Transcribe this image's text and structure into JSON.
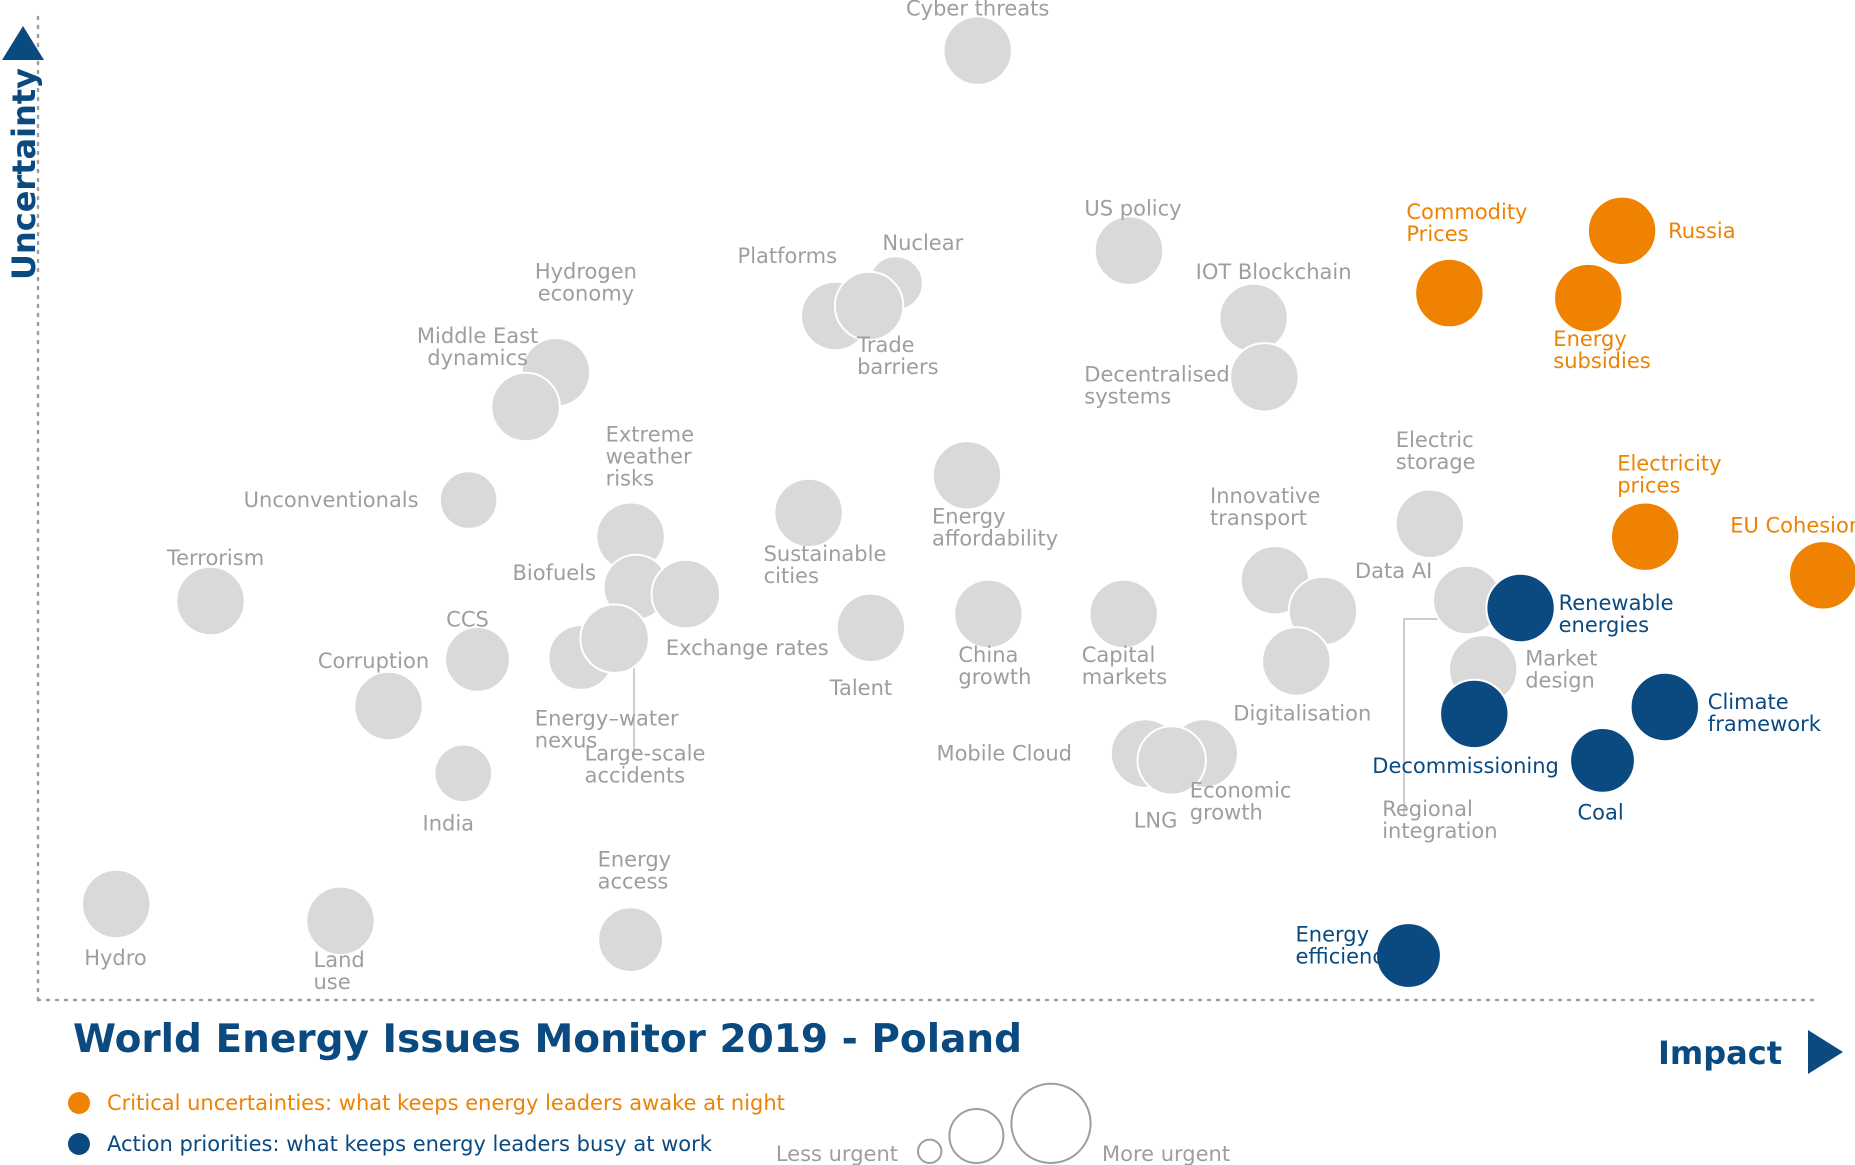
{
  "chart_data": {
    "type": "bubble",
    "title": "World Energy Issues Monitor 2019 - Poland",
    "xlabel": "Impact",
    "ylabel": "Uncertainty",
    "xlim": [
      0,
      100
    ],
    "ylim": [
      0,
      100
    ],
    "colors": {
      "grey": "#d9d9d9",
      "orange": "#ef8200",
      "blue": "#0a4a80",
      "axis": "#0a4a80",
      "dots": "#9e9e9e"
    },
    "legend": [
      {
        "color": "orange",
        "label": "Critical uncertainties: what keeps energy leaders awake at night"
      },
      {
        "color": "blue",
        "label": "Action priorities: what keeps energy leaders busy at work"
      }
    ],
    "size_legend": {
      "less_label": "Less urgent",
      "more_label": "More urgent",
      "sizes": [
        1.3,
        3.0,
        4.4
      ]
    },
    "issues": [
      {
        "name": "Cyber threats",
        "label": [
          "Cyber threats"
        ],
        "x": 52.4,
        "y": 95.9,
        "size": 3.8,
        "category": "grey"
      },
      {
        "name": "US policy",
        "label": [
          "US policy"
        ],
        "x": 60.9,
        "y": 75.7,
        "size": 3.8,
        "category": "grey"
      },
      {
        "name": "Nuclear",
        "label": [
          "Nuclear"
        ],
        "x": 47.8,
        "y": 72.4,
        "size": 3.0,
        "category": "grey"
      },
      {
        "name": "Platforms",
        "label": [
          "Platforms"
        ],
        "x": 44.4,
        "y": 69.1,
        "size": 3.8,
        "category": "grey"
      },
      {
        "name": "Trade barriers",
        "label": [
          "Trade",
          "barriers"
        ],
        "x": 46.3,
        "y": 70.1,
        "size": 3.8,
        "category": "grey"
      },
      {
        "name": "IOT Blockchain",
        "label": [
          "IOT Blockchain"
        ],
        "x": 67.9,
        "y": 68.9,
        "size": 3.8,
        "category": "grey"
      },
      {
        "name": "Decentralised systems",
        "label": [
          "Decentralised",
          "systems"
        ],
        "x": 68.5,
        "y": 62.9,
        "size": 3.8,
        "category": "grey"
      },
      {
        "name": "Hydrogen economy",
        "label": [
          "Hydrogen",
          "economy"
        ],
        "x": 28.7,
        "y": 63.4,
        "size": 3.8,
        "category": "grey"
      },
      {
        "name": "Middle East dynamics",
        "label": [
          "Middle East",
          "dynamics"
        ],
        "x": 27.0,
        "y": 59.9,
        "size": 3.8,
        "category": "grey"
      },
      {
        "name": "Unconventionals",
        "label": [
          "Unconventionals"
        ],
        "x": 23.8,
        "y": 50.5,
        "size": 3.2,
        "category": "grey"
      },
      {
        "name": "Terrorism",
        "label": [
          "Terrorism"
        ],
        "x": 9.3,
        "y": 40.3,
        "size": 3.8,
        "category": "grey"
      },
      {
        "name": "CCS",
        "label": [
          "CCS"
        ],
        "x": 24.3,
        "y": 34.4,
        "size": 3.6,
        "category": "grey"
      },
      {
        "name": "Corruption",
        "label": [
          "Corruption"
        ],
        "x": 19.3,
        "y": 29.7,
        "size": 3.8,
        "category": "grey"
      },
      {
        "name": "India",
        "label": [
          "India"
        ],
        "x": 23.5,
        "y": 22.9,
        "size": 3.2,
        "category": "grey"
      },
      {
        "name": "Extreme weather risks",
        "label": [
          "Extreme",
          "weather",
          "risks"
        ],
        "x": 32.9,
        "y": 46.8,
        "size": 3.8,
        "category": "grey"
      },
      {
        "name": "Biofuels",
        "label": [
          "Biofuels"
        ],
        "x": 33.2,
        "y": 41.7,
        "size": 3.6,
        "category": "grey"
      },
      {
        "name": "Exchange rates",
        "label": [
          "Exchange rates"
        ],
        "x": 36.0,
        "y": 41.0,
        "size": 3.8,
        "category": "grey"
      },
      {
        "name": "Energy-water nexus",
        "label": [
          "Energy–water",
          "nexus"
        ],
        "x": 30.1,
        "y": 34.6,
        "size": 3.6,
        "category": "grey"
      },
      {
        "name": "Large-scale accidents",
        "label": [
          "Large-scale",
          "accidents"
        ],
        "x": 32.0,
        "y": 36.5,
        "size": 3.8,
        "category": "grey"
      },
      {
        "name": "Sustainable cities",
        "label": [
          "Sustainable",
          "cities"
        ],
        "x": 42.9,
        "y": 49.2,
        "size": 3.8,
        "category": "grey"
      },
      {
        "name": "Talent",
        "label": [
          "Talent"
        ],
        "x": 46.4,
        "y": 37.6,
        "size": 3.8,
        "category": "grey"
      },
      {
        "name": "Energy affordability",
        "label": [
          "Energy",
          "affordability"
        ],
        "x": 51.8,
        "y": 53.0,
        "size": 3.8,
        "category": "grey"
      },
      {
        "name": "China growth",
        "label": [
          "China",
          "growth"
        ],
        "x": 53.0,
        "y": 39.0,
        "size": 3.8,
        "category": "grey"
      },
      {
        "name": "Capital markets",
        "label": [
          "Capital",
          "markets"
        ],
        "x": 60.6,
        "y": 39.0,
        "size": 3.8,
        "category": "grey"
      },
      {
        "name": "Innovative transport",
        "label": [
          "Innovative",
          "transport"
        ],
        "x": 69.1,
        "y": 42.4,
        "size": 3.8,
        "category": "grey"
      },
      {
        "name": "Data AI",
        "label": [
          "Data AI"
        ],
        "x": 71.8,
        "y": 39.3,
        "size": 3.8,
        "category": "grey"
      },
      {
        "name": "Digitalisation",
        "label": [
          "Digitalisation"
        ],
        "x": 70.3,
        "y": 34.2,
        "size": 3.8,
        "category": "grey"
      },
      {
        "name": "Electric storage",
        "label": [
          "Electric",
          "storage"
        ],
        "x": 77.8,
        "y": 48.1,
        "size": 3.8,
        "category": "grey"
      },
      {
        "name": "Regional integration",
        "label": [
          "Regional",
          "integration"
        ],
        "x": 79.9,
        "y": 40.4,
        "size": 3.8,
        "category": "grey"
      },
      {
        "name": "Market design",
        "label": [
          "Market",
          "design"
        ],
        "x": 80.8,
        "y": 33.4,
        "size": 3.8,
        "category": "grey"
      },
      {
        "name": "Mobile Cloud",
        "label": [
          "Mobile Cloud"
        ],
        "x": 61.8,
        "y": 24.9,
        "size": 3.8,
        "category": "grey"
      },
      {
        "name": "Economic growth",
        "label": [
          "Economic",
          "growth"
        ],
        "x": 65.1,
        "y": 24.9,
        "size": 3.8,
        "category": "grey"
      },
      {
        "name": "LNG",
        "label": [
          "LNG"
        ],
        "x": 63.3,
        "y": 24.2,
        "size": 3.8,
        "category": "grey"
      },
      {
        "name": "Hydro",
        "label": [
          "Hydro"
        ],
        "x": 4.0,
        "y": 9.7,
        "size": 3.8,
        "category": "grey"
      },
      {
        "name": "Land use",
        "label": [
          "Land",
          "use"
        ],
        "x": 16.6,
        "y": 8.0,
        "size": 3.8,
        "category": "grey"
      },
      {
        "name": "Energy access",
        "label": [
          "Energy",
          "access"
        ],
        "x": 32.9,
        "y": 6.1,
        "size": 3.6,
        "category": "grey"
      },
      {
        "name": "Commodity Prices",
        "label": [
          "Commodity",
          "Prices"
        ],
        "x": 78.9,
        "y": 71.4,
        "size": 3.8,
        "category": "orange"
      },
      {
        "name": "Russia",
        "label": [
          "Russia"
        ],
        "x": 88.6,
        "y": 77.7,
        "size": 3.8,
        "category": "orange"
      },
      {
        "name": "Energy subsidies",
        "label": [
          "Energy",
          "subsidies"
        ],
        "x": 86.7,
        "y": 70.9,
        "size": 3.8,
        "category": "orange"
      },
      {
        "name": "Electricity prices",
        "label": [
          "Electricity",
          "prices"
        ],
        "x": 89.9,
        "y": 46.8,
        "size": 3.8,
        "category": "orange"
      },
      {
        "name": "EU Cohesion",
        "label": [
          "EU Cohesion"
        ],
        "x": 99.9,
        "y": 42.9,
        "size": 3.8,
        "category": "orange"
      },
      {
        "name": "Renewable energies",
        "label": [
          "Renewable",
          "energies"
        ],
        "x": 82.9,
        "y": 39.6,
        "size": 3.8,
        "category": "blue"
      },
      {
        "name": "Decommissioning",
        "label": [
          "Decommissioning"
        ],
        "x": 80.3,
        "y": 28.9,
        "size": 3.8,
        "category": "blue"
      },
      {
        "name": "Climate framework",
        "label": [
          "Climate",
          "framework"
        ],
        "x": 91.0,
        "y": 29.6,
        "size": 3.8,
        "category": "blue"
      },
      {
        "name": "Coal",
        "label": [
          "Coal"
        ],
        "x": 87.5,
        "y": 24.2,
        "size": 3.6,
        "category": "blue"
      },
      {
        "name": "Energy efficiency",
        "label": [
          "Energy",
          "efficiency"
        ],
        "x": 76.6,
        "y": 4.5,
        "size": 3.6,
        "category": "blue"
      }
    ]
  }
}
